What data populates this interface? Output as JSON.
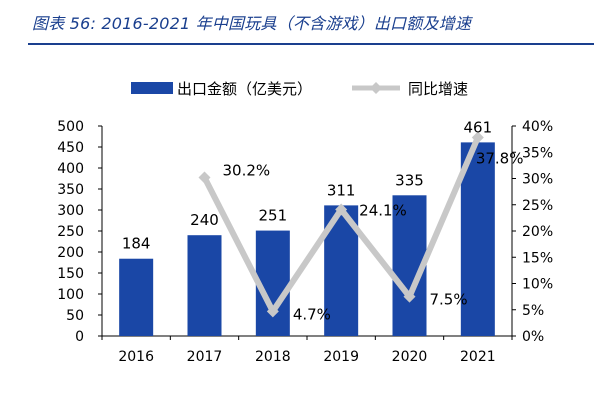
{
  "figure": {
    "title": "图表 56:  2016-2021 年中国玩具（不含游戏）出口额及增速"
  },
  "chart_data": {
    "type": "bar",
    "categories": [
      "2016",
      "2017",
      "2018",
      "2019",
      "2020",
      "2021"
    ],
    "series": [
      {
        "name": "出口金额（亿美元）",
        "type": "bar",
        "axis": "left",
        "color": "#1a47a6",
        "values": [
          184,
          240,
          251,
          311,
          335,
          461
        ],
        "labels": [
          "184",
          "240",
          "251",
          "311",
          "335",
          "461"
        ]
      },
      {
        "name": "同比增速",
        "type": "line",
        "axis": "right",
        "color": "#c8c8c8",
        "values": [
          null,
          30.2,
          4.7,
          24.1,
          7.5,
          37.8
        ],
        "labels": [
          "",
          "30.2%",
          "4.7%",
          "24.1%",
          "7.5%",
          "37.8%"
        ]
      }
    ],
    "y_left": {
      "ylim": [
        0,
        500
      ],
      "ticks": [
        0,
        50,
        100,
        150,
        200,
        250,
        300,
        350,
        400,
        450,
        500
      ],
      "tick_labels": [
        "0",
        "50",
        "100",
        "150",
        "200",
        "250",
        "300",
        "350",
        "400",
        "450",
        "500"
      ]
    },
    "y_right": {
      "ylim": [
        0,
        40
      ],
      "ticks": [
        0,
        5,
        10,
        15,
        20,
        25,
        30,
        35,
        40
      ],
      "tick_labels": [
        "0%",
        "5%",
        "10%",
        "15%",
        "20%",
        "25%",
        "30%",
        "35%",
        "40%"
      ]
    },
    "grid": false,
    "legend_position": "top"
  }
}
